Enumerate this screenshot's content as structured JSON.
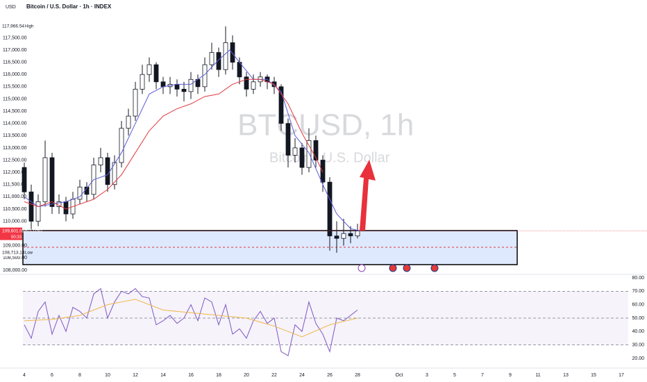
{
  "chart_data": {
    "type": "candlestick",
    "currency": "USD",
    "title": "Bitcoin / U.S. Dollar · 1h · INDEX",
    "watermark": "BTCUSD, 1h",
    "watermark_sub": "Bitcoin / U.S. Dollar",
    "x": [
      4,
      4.5,
      5,
      5.5,
      6,
      6.5,
      7,
      7.5,
      8,
      8.5,
      9,
      9.5,
      10,
      10.5,
      11,
      11.5,
      12,
      12.5,
      13,
      13.5,
      14,
      14.5,
      15,
      15.5,
      16,
      16.5,
      17,
      17.5,
      18,
      18.5,
      19,
      19.5,
      20,
      20.5,
      21,
      21.5,
      22,
      22.5,
      23,
      23.5,
      24,
      24.5,
      25,
      25.5,
      26,
      26.5,
      27,
      27.5,
      28
    ],
    "open": [
      112200,
      111200,
      110000,
      110800,
      112600,
      110600,
      110800,
      110300,
      110900,
      111400,
      111100,
      112300,
      112600,
      111500,
      112400,
      113800,
      114300,
      115400,
      116000,
      116400,
      115700,
      115500,
      115600,
      115400,
      115300,
      115800,
      115500,
      116400,
      116900,
      116200,
      117300,
      116500,
      115900,
      115400,
      115700,
      115900,
      115700,
      115500,
      114000,
      112700,
      113000,
      112200,
      113300,
      112500,
      111600,
      109400,
      109300,
      109500,
      109400
    ],
    "high": [
      112400,
      111500,
      111100,
      113300,
      112800,
      111100,
      111000,
      111200,
      111700,
      111600,
      112600,
      113000,
      112800,
      112700,
      114100,
      114600,
      115700,
      116400,
      116700,
      116500,
      115900,
      115900,
      115800,
      115700,
      116100,
      116000,
      116700,
      117300,
      117100,
      117966.54,
      117600,
      116700,
      116100,
      116000,
      116100,
      116000,
      115900,
      115600,
      114200,
      113400,
      113200,
      113800,
      113500,
      112700,
      111800,
      110000,
      110100,
      109800,
      109900
    ],
    "low": [
      110900,
      109600,
      109800,
      110600,
      110300,
      110300,
      110000,
      110100,
      110700,
      110800,
      110900,
      112000,
      111200,
      111300,
      112200,
      113500,
      114100,
      115200,
      115700,
      115400,
      115200,
      115200,
      115100,
      114900,
      115000,
      115200,
      115300,
      116200,
      115900,
      116000,
      116200,
      115600,
      115100,
      115200,
      115500,
      115400,
      115200,
      113700,
      112200,
      112400,
      111900,
      112000,
      112200,
      111200,
      108800,
      108713.14,
      109000,
      109100,
      109300
    ],
    "close": [
      111200,
      110000,
      110800,
      112600,
      110600,
      110800,
      110300,
      110900,
      111400,
      111100,
      112300,
      112600,
      111500,
      112400,
      113800,
      114300,
      115400,
      116000,
      116400,
      115700,
      115500,
      115600,
      115400,
      115300,
      115800,
      115500,
      116400,
      116900,
      116200,
      117300,
      116500,
      115900,
      115400,
      115700,
      115900,
      115700,
      115500,
      114000,
      112700,
      113000,
      112200,
      113300,
      112500,
      111600,
      109400,
      109300,
      109500,
      109400,
      109601.03
    ],
    "candle_color": "#131722",
    "ma_fast": {
      "color": "#5b5bd6",
      "x": [
        4,
        5,
        6,
        7,
        8,
        9,
        10,
        11,
        12,
        13,
        14,
        15,
        16,
        17,
        18,
        18.8,
        19.5,
        20.5,
        21.5,
        22.5,
        23.5,
        24.5,
        25.5,
        26.5,
        27.5,
        28.2
      ],
      "values": [
        111000,
        110600,
        110700,
        110800,
        111000,
        111700,
        111900,
        112800,
        114000,
        115200,
        115500,
        115600,
        115600,
        116000,
        116600,
        117000,
        116500,
        115800,
        115800,
        115300,
        113500,
        112800,
        111500,
        110300,
        109700,
        109600
      ]
    },
    "ma_slow": {
      "color": "#e0383e",
      "x": [
        4,
        5,
        6,
        7,
        8,
        9,
        10,
        11,
        12,
        13,
        14,
        15,
        16,
        17,
        18,
        19,
        20,
        21,
        22,
        23,
        24,
        25,
        25.5
      ],
      "values": [
        110800,
        110600,
        110800,
        110500,
        110700,
        110900,
        111300,
        111900,
        112800,
        113700,
        114300,
        114600,
        114800,
        115100,
        115200,
        115600,
        115800,
        115800,
        115600,
        114800,
        113600,
        112600,
        112000
      ]
    },
    "ylim": [
      107830,
      119045
    ],
    "yticks": [
      {
        "value": 108000,
        "label": "108,000.00"
      },
      {
        "value": 108500,
        "label": "108,500.00"
      },
      {
        "value": 109000,
        "label": "109,000.00"
      },
      {
        "value": 110000,
        "label": "110,000.00"
      },
      {
        "value": 110500,
        "label": "110,500.00"
      },
      {
        "value": 111000,
        "label": "111,000.00"
      },
      {
        "value": 111500,
        "label": "111,500.00"
      },
      {
        "value": 112000,
        "label": "112,000.00"
      },
      {
        "value": 112500,
        "label": "112,500.00"
      },
      {
        "value": 113000,
        "label": "113,000.00"
      },
      {
        "value": 113500,
        "label": "113,500.00"
      },
      {
        "value": 114000,
        "label": "114,000.00"
      },
      {
        "value": 114500,
        "label": "114,500.00"
      },
      {
        "value": 115000,
        "label": "115,000.00"
      },
      {
        "value": 115500,
        "label": "115,500.00"
      },
      {
        "value": 116000,
        "label": "116,000.00"
      },
      {
        "value": 116500,
        "label": "116,500.00"
      },
      {
        "value": 117000,
        "label": "117,000.00"
      },
      {
        "value": 117500,
        "label": "117,500.00"
      }
    ],
    "price_labels": [
      {
        "value": 117966.54,
        "label": "117,966.54",
        "tag": "High"
      },
      {
        "value": 109601.03,
        "label": "109,601.03",
        "tag": "BTCUSD",
        "countdown": "50:33"
      },
      {
        "value": 108713.14,
        "label": "108,713.14",
        "tag": "Low"
      }
    ],
    "xlim": [
      3.9,
      47.5
    ],
    "xticks": [
      4,
      6,
      8,
      10,
      12,
      14,
      16,
      18,
      20,
      22,
      24,
      26,
      28,
      {
        "value": 31,
        "label": "Oct"
      },
      3,
      5,
      7,
      9,
      11,
      13,
      15,
      17
    ],
    "rsi": {
      "color": "#7e57c2",
      "signal_color": "#f0b84a",
      "values": [
        45,
        35,
        55,
        62,
        38,
        52,
        40,
        58,
        55,
        50,
        68,
        72,
        50,
        62,
        70,
        68,
        72,
        66,
        65,
        45,
        48,
        52,
        46,
        50,
        60,
        48,
        65,
        62,
        45,
        60,
        38,
        42,
        35,
        48,
        55,
        46,
        50,
        25,
        22,
        45,
        40,
        62,
        46,
        38,
        25,
        50,
        48,
        52,
        56
      ],
      "signal_x": [
        4,
        6,
        8,
        10,
        12,
        14,
        16,
        18,
        20,
        22,
        24,
        26,
        28
      ],
      "signal": [
        48,
        49,
        52,
        60,
        64,
        56,
        54,
        52,
        50,
        44,
        36,
        45,
        50
      ],
      "ylim": [
        15.3,
        82.6
      ],
      "yticks": [
        {
          "value": 20,
          "label": "20.00"
        },
        {
          "value": 30,
          "label": "30.00"
        },
        {
          "value": 40,
          "label": "40.00"
        },
        {
          "value": 50,
          "label": "50.00"
        },
        {
          "value": 60,
          "label": "60.00"
        },
        {
          "value": 70,
          "label": "70.00"
        },
        {
          "value": 80,
          "label": "80.00"
        }
      ],
      "bands": [
        30,
        50,
        70
      ]
    }
  }
}
